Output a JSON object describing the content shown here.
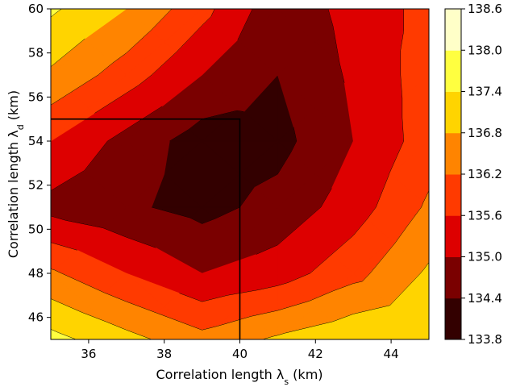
{
  "chart_data": {
    "type": "contour",
    "xlabel": "Correlation length λ_s (km)",
    "ylabel": "Correlation length λ_d (km)",
    "xlim": [
      35,
      45
    ],
    "ylim": [
      45,
      60
    ],
    "xticks": [
      36,
      38,
      40,
      42,
      44
    ],
    "yticks": [
      46,
      48,
      50,
      52,
      54,
      56,
      58,
      60
    ],
    "colorbar": {
      "levels": [
        133.8,
        134.4,
        135.0,
        135.6,
        136.2,
        136.8,
        137.4,
        138.0,
        138.6
      ],
      "colors": [
        "#330000",
        "#7a0000",
        "#dd0000",
        "#ff3a00",
        "#ff8400",
        "#ffd400",
        "#ffff40",
        "#ffffc8"
      ]
    },
    "grid_x": [
      35,
      37,
      39,
      41,
      43,
      45
    ],
    "grid_y": [
      45,
      48,
      51,
      54,
      57,
      60
    ],
    "z": [
      [
        137.6,
        137.0,
        136.4,
        136.9,
        137.3,
        137.1
      ],
      [
        136.3,
        135.6,
        135.0,
        135.3,
        136.0,
        136.9
      ],
      [
        134.8,
        134.5,
        134.2,
        134.6,
        135.3,
        136.3
      ],
      [
        135.6,
        134.8,
        134.1,
        134.2,
        135.0,
        135.9
      ],
      [
        136.7,
        135.9,
        135.0,
        134.4,
        135.1,
        135.9
      ],
      [
        137.5,
        136.8,
        135.8,
        134.6,
        135.2,
        135.8
      ]
    ],
    "highlight_box": {
      "x": [
        35,
        40
      ],
      "y": [
        45,
        55
      ]
    }
  }
}
